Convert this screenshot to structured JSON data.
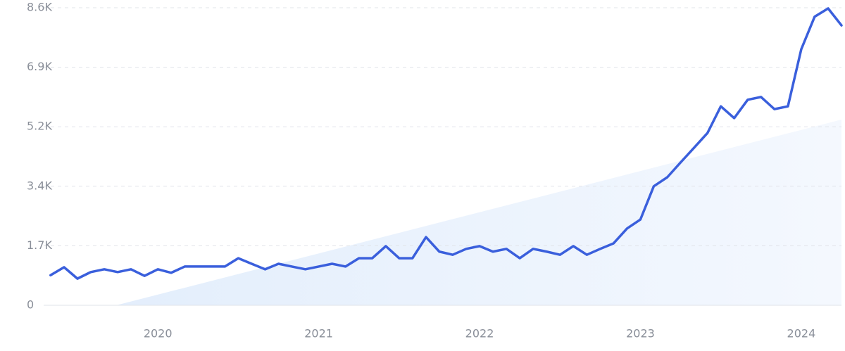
{
  "chart_data": {
    "type": "line",
    "x": [
      2019.333,
      2019.417,
      2019.5,
      2019.583,
      2019.667,
      2019.75,
      2019.833,
      2019.917,
      2020,
      2020.083,
      2020.167,
      2020.25,
      2020.333,
      2020.417,
      2020.5,
      2020.583,
      2020.667,
      2020.75,
      2020.833,
      2020.917,
      2021,
      2021.083,
      2021.167,
      2021.25,
      2021.333,
      2021.417,
      2021.5,
      2021.583,
      2021.667,
      2021.75,
      2021.833,
      2021.917,
      2022,
      2022.083,
      2022.167,
      2022.25,
      2022.333,
      2022.417,
      2022.5,
      2022.583,
      2022.667,
      2022.75,
      2022.833,
      2022.917,
      2023,
      2023.083,
      2023.167,
      2023.25,
      2023.333,
      2023.417,
      2023.5,
      2023.583,
      2023.667,
      2023.75,
      2023.833,
      2023.917,
      2024,
      2024.083,
      2024.167,
      2024.25
    ],
    "series": [
      {
        "color": "#3a5fdc",
        "values": [
          870,
          1100,
          770,
          960,
          1040,
          960,
          1040,
          850,
          1040,
          940,
          1120,
          1120,
          1120,
          1120,
          1360,
          1200,
          1040,
          1200,
          1120,
          1040,
          1120,
          1200,
          1120,
          1360,
          1360,
          1710,
          1360,
          1360,
          1970,
          1550,
          1460,
          1630,
          1710,
          1550,
          1630,
          1360,
          1630,
          1550,
          1460,
          1710,
          1460,
          1630,
          1790,
          2220,
          2480,
          3440,
          3700,
          4130,
          4550,
          4980,
          5750,
          5410,
          5940,
          6020,
          5670,
          5750,
          7400,
          8340,
          8580,
          8090
        ]
      }
    ],
    "xlim": [
      2019.29,
      2024.25
    ],
    "xticks": [
      2020,
      2021,
      2022,
      2023,
      2024
    ],
    "ylim": [
      0,
      8600
    ],
    "yticks": [
      0,
      {
        "value": 1720,
        "label": "1.7K"
      },
      {
        "value": 3440,
        "label": "3.4K"
      },
      {
        "value": 5160,
        "label": "5.2K"
      },
      {
        "value": 6880,
        "label": "6.9K"
      },
      {
        "value": 8600,
        "label": "8.6K"
      }
    ],
    "grid": true
  }
}
